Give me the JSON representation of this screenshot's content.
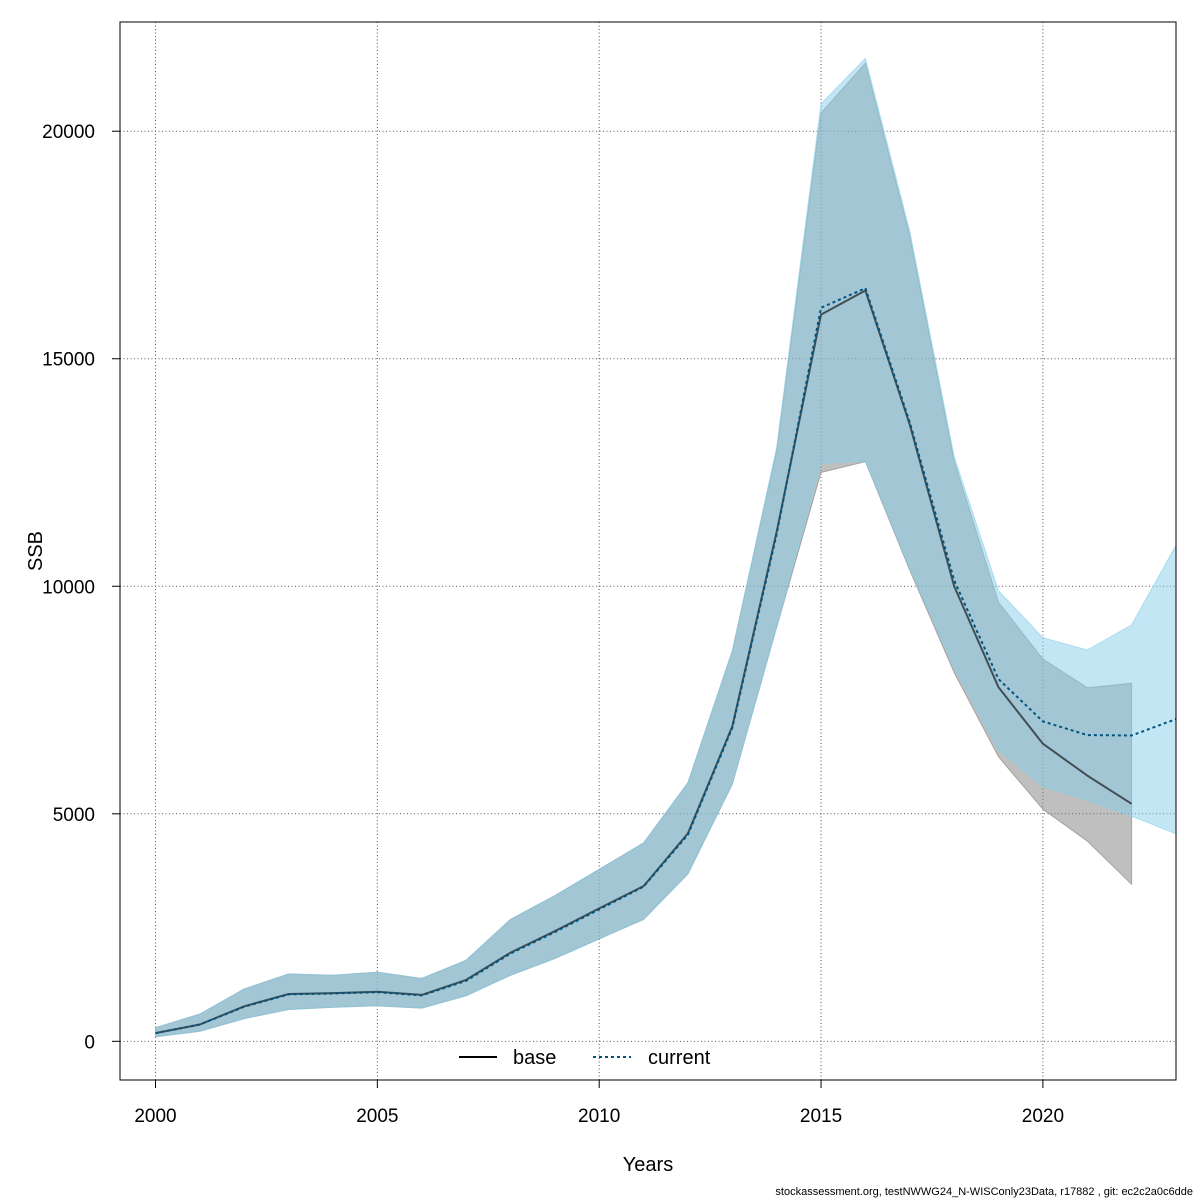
{
  "chart_data": {
    "type": "line",
    "xlabel": "Years",
    "ylabel": "SSB",
    "xlim": [
      1999.2,
      2023
    ],
    "ylim": [
      -850,
      22400
    ],
    "x_ticks": [
      2000,
      2005,
      2010,
      2015,
      2020
    ],
    "y_ticks": [
      0,
      5000,
      10000,
      15000,
      20000
    ],
    "grid": true,
    "legend_position": "bottom-center",
    "series": [
      {
        "name": "base",
        "color": "#000000",
        "band_color": "#808080",
        "line_style": "solid",
        "x": [
          2000,
          2001,
          2002,
          2003,
          2004,
          2005,
          2006,
          2007,
          2008,
          2009,
          2010,
          2011,
          2012,
          2013,
          2014,
          2015,
          2016,
          2017,
          2018,
          2019,
          2020,
          2021,
          2022
        ],
        "y": [
          180,
          370,
          770,
          1040,
          1060,
          1090,
          1020,
          1350,
          1950,
          2420,
          2920,
          3410,
          4570,
          6920,
          11200,
          15970,
          16500,
          13550,
          10000,
          7780,
          6540,
          5840,
          5220
        ],
        "lower": [
          100,
          220,
          500,
          700,
          750,
          780,
          730,
          1000,
          1450,
          1820,
          2250,
          2680,
          3680,
          5650,
          9100,
          12500,
          12740,
          10350,
          8100,
          6250,
          5100,
          4400,
          3450
        ],
        "upper": [
          300,
          600,
          1150,
          1480,
          1450,
          1520,
          1380,
          1780,
          2680,
          3200,
          3780,
          4360,
          5680,
          8580,
          13000,
          20400,
          21500,
          17700,
          12750,
          9650,
          8400,
          7770,
          7870
        ]
      },
      {
        "name": "current",
        "color": "#00557f",
        "band_color": "#87ceeb",
        "line_style": "dotted",
        "x": [
          2000,
          2001,
          2002,
          2003,
          2004,
          2005,
          2006,
          2007,
          2008,
          2009,
          2010,
          2011,
          2012,
          2013,
          2014,
          2015,
          2016,
          2017,
          2018,
          2019,
          2020,
          2021,
          2022,
          2023
        ],
        "y": [
          180,
          370,
          760,
          1030,
          1050,
          1080,
          1010,
          1330,
          1930,
          2400,
          2900,
          3400,
          4540,
          6890,
          11150,
          16120,
          16550,
          13600,
          10130,
          7960,
          7030,
          6730,
          6720,
          7080
        ],
        "lower": [
          100,
          220,
          500,
          700,
          750,
          780,
          730,
          1000,
          1450,
          1820,
          2250,
          2680,
          3680,
          5650,
          9100,
          12700,
          12760,
          10400,
          8200,
          6400,
          5600,
          5300,
          4950,
          4560
        ],
        "upper": [
          300,
          600,
          1150,
          1480,
          1450,
          1520,
          1380,
          1780,
          2680,
          3200,
          3780,
          4360,
          5680,
          8580,
          13050,
          20600,
          21600,
          17800,
          12850,
          9900,
          8870,
          8600,
          9150,
          10900
        ]
      }
    ]
  },
  "footer": {
    "text": "stockassessment.org, testNWWG24_N-WISConly23Data, r17882 , git: ec2c2a0c6dde"
  }
}
